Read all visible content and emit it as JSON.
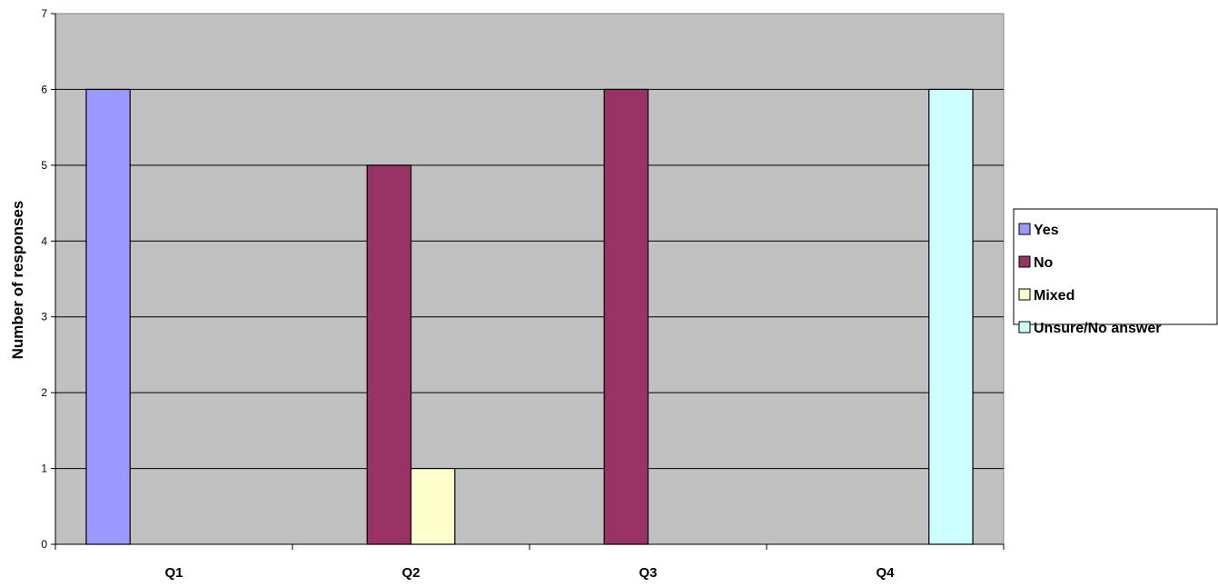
{
  "chart_data": {
    "type": "bar",
    "categories": [
      "Q1",
      "Q2",
      "Q3",
      "Q4"
    ],
    "series": [
      {
        "name": "Yes",
        "color": "#9999ff",
        "values": [
          6,
          0,
          0,
          0
        ]
      },
      {
        "name": "No",
        "color": "#993366",
        "values": [
          0,
          5,
          6,
          0
        ]
      },
      {
        "name": "Mixed",
        "color": "#ffffcc",
        "values": [
          0,
          1,
          0,
          0
        ]
      },
      {
        "name": "Unsure/No answer",
        "color": "#ccffff",
        "values": [
          0,
          0,
          0,
          6
        ]
      }
    ],
    "title": "",
    "xlabel": "",
    "ylabel": "Number of responses",
    "ylim": [
      0,
      7
    ],
    "yticks": [
      0,
      1,
      2,
      3,
      4,
      5,
      6,
      7
    ],
    "grid": true,
    "plot_background": "#c0c0c0",
    "legend_position": "right"
  }
}
